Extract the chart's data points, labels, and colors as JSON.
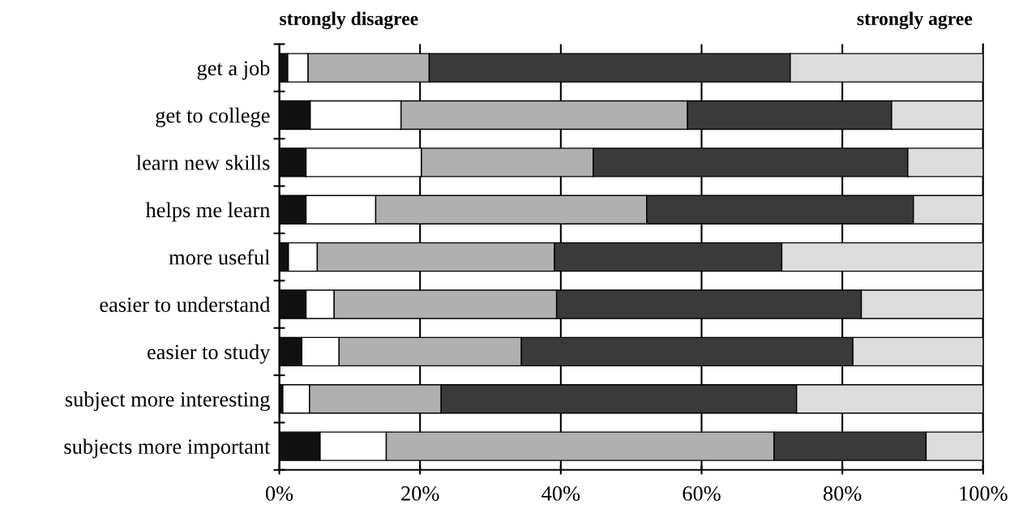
{
  "chart_data": {
    "type": "bar",
    "orientation": "horizontal",
    "stacked": true,
    "categories": [
      "get a job",
      "get to college",
      "learn new skills",
      "helps me learn",
      "more useful",
      "easier to understand",
      "easier to study",
      "subject more interesting",
      "subjects more important"
    ],
    "series": [
      {
        "color": "#111111",
        "values": [
          1.2,
          4.4,
          3.8,
          3.8,
          1.3,
          3.8,
          3.2,
          0.5,
          5.8
        ]
      },
      {
        "color": "#ffffff",
        "values": [
          2.9,
          12.9,
          16.4,
          9.9,
          4.1,
          4.0,
          5.3,
          3.8,
          9.4
        ]
      },
      {
        "color": "#b0b0b0",
        "values": [
          17.2,
          40.7,
          24.4,
          38.5,
          33.7,
          31.6,
          25.9,
          18.7,
          55.1
        ]
      },
      {
        "color": "#3a3a3a",
        "values": [
          51.3,
          29.0,
          44.7,
          37.9,
          32.3,
          43.3,
          47.1,
          50.5,
          21.6
        ]
      },
      {
        "color": "#dcdcdc",
        "values": [
          27.4,
          13.0,
          10.7,
          9.9,
          28.6,
          17.3,
          18.5,
          26.5,
          8.1
        ]
      }
    ],
    "xlim": [
      0,
      100
    ],
    "xticks": [
      {
        "value": 0,
        "label": "0%"
      },
      {
        "value": 20,
        "label": "20%"
      },
      {
        "value": 40,
        "label": "40%"
      },
      {
        "value": 60,
        "label": "60%"
      },
      {
        "value": 80,
        "label": "80%"
      },
      {
        "value": 100,
        "label": "100%"
      }
    ],
    "grid": "x",
    "annotations": [
      "strongly disagree",
      "strongly agree"
    ]
  }
}
